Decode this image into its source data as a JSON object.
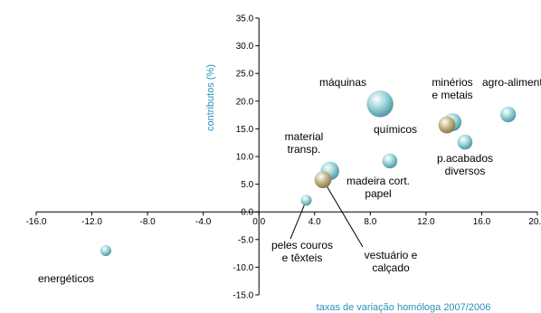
{
  "chart_data": {
    "type": "scatter",
    "title": "",
    "xlabel": "taxas de variação homóloga 2007/2006",
    "ylabel": "contributos (%)",
    "xlim": [
      -16,
      20
    ],
    "ylim": [
      -15,
      35
    ],
    "x_ticks": [
      "-16.0",
      "-12.0",
      "-8.0",
      "-4.0",
      "0.0",
      "4.0",
      "8.0",
      "12.0",
      "16.0",
      "20.0"
    ],
    "y_ticks": [
      "-15.0",
      "-10.0",
      "-5.0",
      "0.0",
      "5.0",
      "10.0",
      "15.0",
      "20.0",
      "25.0",
      "30.0",
      "35.0"
    ],
    "grid": false,
    "points": [
      {
        "label": "energéticos",
        "x": -11.0,
        "y": -7.0,
        "size": 2.0,
        "color": "#9fd6dc"
      },
      {
        "label": "máquinas",
        "x": 8.7,
        "y": 19.5,
        "size": 17.0,
        "color": "#9fd6dc"
      },
      {
        "label": "minérios e metais",
        "x": 13.9,
        "y": 16.2,
        "size": 7.0,
        "color": "#9fd6dc"
      },
      {
        "label": "químicos",
        "x": 13.5,
        "y": 15.7,
        "size": 6.0,
        "color": "#c8b88c"
      },
      {
        "label": "agro-aliment.",
        "x": 17.9,
        "y": 17.6,
        "size": 5.0,
        "color": "#9fd6dc"
      },
      {
        "label": "p.acabados diversos",
        "x": 14.8,
        "y": 12.6,
        "size": 4.5,
        "color": "#9fd6dc"
      },
      {
        "label": "madeira cort. papel",
        "x": 9.4,
        "y": 9.2,
        "size": 4.5,
        "color": "#9fd6dc"
      },
      {
        "label": "material transp.",
        "x": 5.1,
        "y": 7.4,
        "size": 7.5,
        "color": "#9fd6dc"
      },
      {
        "label": "vestuário e calçado",
        "x": 4.6,
        "y": 5.8,
        "size": 6.0,
        "color": "#c8b88c"
      },
      {
        "label": "peles couros e têxteis",
        "x": 3.4,
        "y": 2.1,
        "size": 2.0,
        "color": "#9fd6dc"
      }
    ]
  }
}
